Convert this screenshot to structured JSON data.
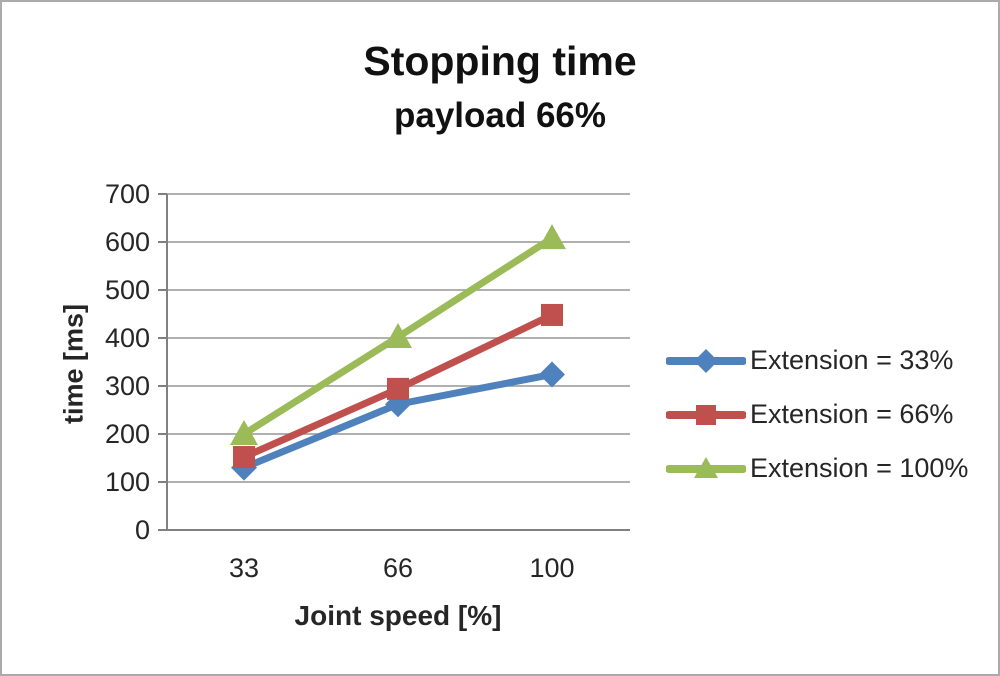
{
  "window": {
    "background": "#ffffff",
    "border_color": "#ababab"
  },
  "chart_data": {
    "type": "line",
    "title": "Stopping time",
    "subtitle": "payload 66%",
    "xlabel": "Joint speed [%]",
    "ylabel": "time [ms]",
    "categories": [
      "33",
      "66",
      "100"
    ],
    "ylim": [
      0,
      700
    ],
    "ytick_step": 100,
    "yticks": [
      "700",
      "600",
      "500",
      "400",
      "300",
      "200",
      "100",
      "0"
    ],
    "grid": true,
    "legend_position": "right",
    "series": [
      {
        "name": "Extension = 33%",
        "color": "#4F81BD",
        "marker": "diamond",
        "values": [
          130,
          262,
          324
        ]
      },
      {
        "name": "Extension = 66%",
        "color": "#C0504D",
        "marker": "square",
        "values": [
          152,
          294,
          448
        ]
      },
      {
        "name": "Extension = 100%",
        "color": "#9BBB59",
        "marker": "triangle",
        "values": [
          200,
          402,
          608
        ]
      }
    ],
    "gridline_color": "#969696",
    "axis_color": "#808080",
    "text_color": "#262626"
  }
}
